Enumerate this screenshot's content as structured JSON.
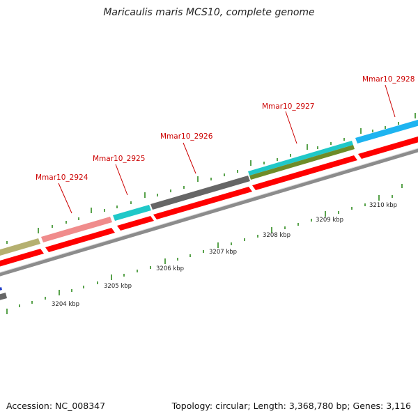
{
  "title": "Maricaulis maris MCS10, complete genome",
  "accession": "Accession: NC_008347",
  "summary": "Topology: circular; Length: 3,368,780 bp; Genes: 3,116",
  "scale_labels": [
    {
      "text": "3204 kbp"
    },
    {
      "text": "3205 kbp"
    },
    {
      "text": "3206 kbp"
    },
    {
      "text": "3207 kbp"
    },
    {
      "text": "3208 kbp"
    },
    {
      "text": "3209 kbp"
    },
    {
      "text": "3210 kbp"
    }
  ],
  "gene_labels": [
    {
      "text": "Mmar10_2924"
    },
    {
      "text": "Mmar10_2925"
    },
    {
      "text": "Mmar10_2926"
    },
    {
      "text": "Mmar10_2927"
    },
    {
      "text": "Mmar10_2928"
    }
  ],
  "colors": {
    "cds_forward": "#ff0000",
    "backbone": "#8c8c8c",
    "tick": "#2e8b1e",
    "label": "#cc0000",
    "olive": "#b5b070",
    "pink": "#f08c8c",
    "teal": "#20c8c8",
    "darkgray": "#666666",
    "green_olive": "#6e8c28",
    "skyblue": "#1eb4f0"
  }
}
